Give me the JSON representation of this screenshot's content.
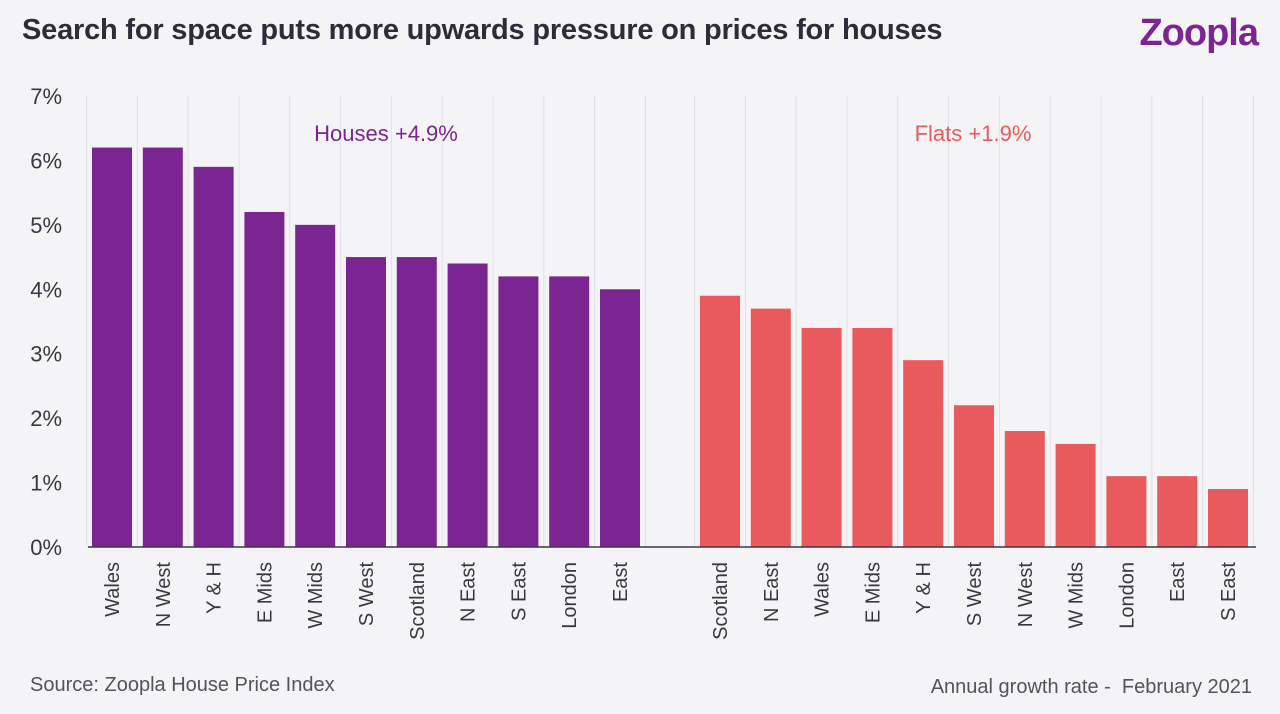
{
  "header": {
    "title": "Search for space puts more upwards pressure on prices for houses",
    "logo": "Zoopla"
  },
  "footer": {
    "source": "Source: Zoopla House Price Index",
    "note": "Annual growth rate -  February 2021"
  },
  "chart_data": {
    "type": "bar",
    "title": "Search for space puts more upwards pressure on prices for houses",
    "ylim": [
      0,
      7
    ],
    "yticks": [
      "0%",
      "1%",
      "2%",
      "3%",
      "4%",
      "5%",
      "6%",
      "7%"
    ],
    "grid": "vertical",
    "series": [
      {
        "name": "Houses +4.9%",
        "color": "#7b2592",
        "categories": [
          "Wales",
          "N West",
          "Y & H",
          "E Mids",
          "W Mids",
          "S West",
          "Scotland",
          "N East",
          "S East",
          "London",
          "East"
        ],
        "values": [
          6.2,
          6.2,
          5.9,
          5.2,
          5.0,
          4.5,
          4.5,
          4.4,
          4.2,
          4.2,
          4.0
        ]
      },
      {
        "name": "Flats +1.9%",
        "color": "#e85a5e",
        "categories": [
          "Scotland",
          "N East",
          "Wales",
          "E Mids",
          "Y & H",
          "S West",
          "N West",
          "W Mids",
          "London",
          "East",
          "S East"
        ],
        "values": [
          3.9,
          3.7,
          3.4,
          3.4,
          2.9,
          2.2,
          1.8,
          1.6,
          1.1,
          1.1,
          0.9
        ]
      }
    ]
  }
}
